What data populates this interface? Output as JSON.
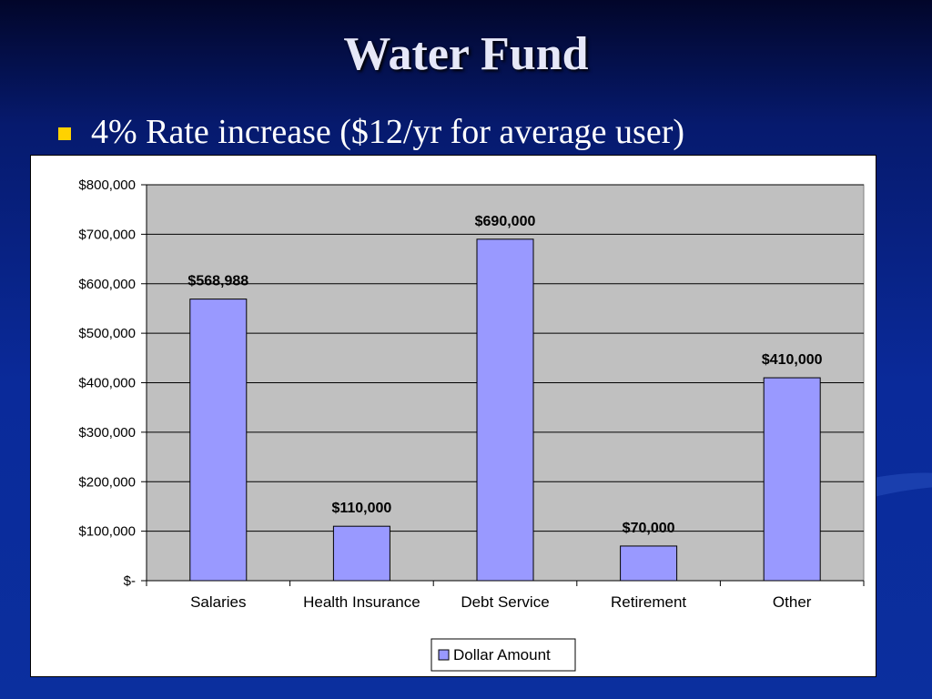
{
  "slide": {
    "title": "Water Fund",
    "bullet": "4% Rate increase ($12/yr for average user)"
  },
  "colors": {
    "bar_fill": "#9999ff",
    "plot_background": "#c0c0c0",
    "bullet_color": "#ffd200"
  },
  "chart_data": {
    "type": "bar",
    "categories": [
      "Salaries",
      "Health Insurance",
      "Debt Service",
      "Retirement",
      "Other"
    ],
    "series": [
      {
        "name": "Dollar Amount",
        "values": [
          568988,
          110000,
          690000,
          70000,
          410000
        ]
      }
    ],
    "data_labels": [
      "$568,988",
      "$110,000",
      "$690,000",
      "$70,000",
      "$410,000"
    ],
    "y_ticks": [
      0,
      100000,
      200000,
      300000,
      400000,
      500000,
      600000,
      700000,
      800000
    ],
    "y_tick_labels": [
      "$-",
      "$100,000",
      "$200,000",
      "$300,000",
      "$400,000",
      "$500,000",
      "$600,000",
      "$700,000",
      "$800,000"
    ],
    "ylim": [
      0,
      800000
    ],
    "grid": true,
    "legend_position": "bottom"
  }
}
